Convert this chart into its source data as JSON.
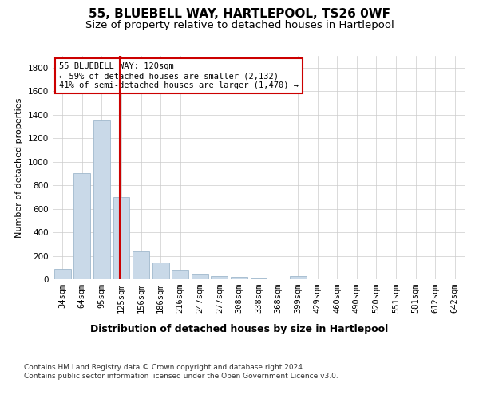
{
  "title1": "55, BLUEBELL WAY, HARTLEPOOL, TS26 0WF",
  "title2": "Size of property relative to detached houses in Hartlepool",
  "xlabel": "Distribution of detached houses by size in Hartlepool",
  "ylabel": "Number of detached properties",
  "categories": [
    "34sqm",
    "64sqm",
    "95sqm",
    "125sqm",
    "156sqm",
    "186sqm",
    "216sqm",
    "247sqm",
    "277sqm",
    "308sqm",
    "338sqm",
    "368sqm",
    "399sqm",
    "429sqm",
    "460sqm",
    "490sqm",
    "520sqm",
    "551sqm",
    "581sqm",
    "612sqm",
    "642sqm"
  ],
  "values": [
    90,
    900,
    1350,
    700,
    240,
    140,
    80,
    50,
    25,
    20,
    15,
    0,
    30,
    0,
    0,
    0,
    0,
    0,
    0,
    0,
    0
  ],
  "bar_color": "#c9d9e8",
  "bar_edge_color": "#a0b8cc",
  "vline_color": "#cc0000",
  "annotation_text": "55 BLUEBELL WAY: 120sqm\n← 59% of detached houses are smaller (2,132)\n41% of semi-detached houses are larger (1,470) →",
  "annotation_box_color": "#ffffff",
  "annotation_box_edge": "#cc0000",
  "ylim": [
    0,
    1900
  ],
  "yticks": [
    0,
    200,
    400,
    600,
    800,
    1000,
    1200,
    1400,
    1600,
    1800
  ],
  "footnote": "Contains HM Land Registry data © Crown copyright and database right 2024.\nContains public sector information licensed under the Open Government Licence v3.0.",
  "title1_fontsize": 11,
  "title2_fontsize": 9.5,
  "xlabel_fontsize": 9,
  "ylabel_fontsize": 8,
  "tick_fontsize": 7.5,
  "annotation_fontsize": 7.5,
  "footnote_fontsize": 6.5,
  "background_color": "#ffffff",
  "grid_color": "#cccccc"
}
